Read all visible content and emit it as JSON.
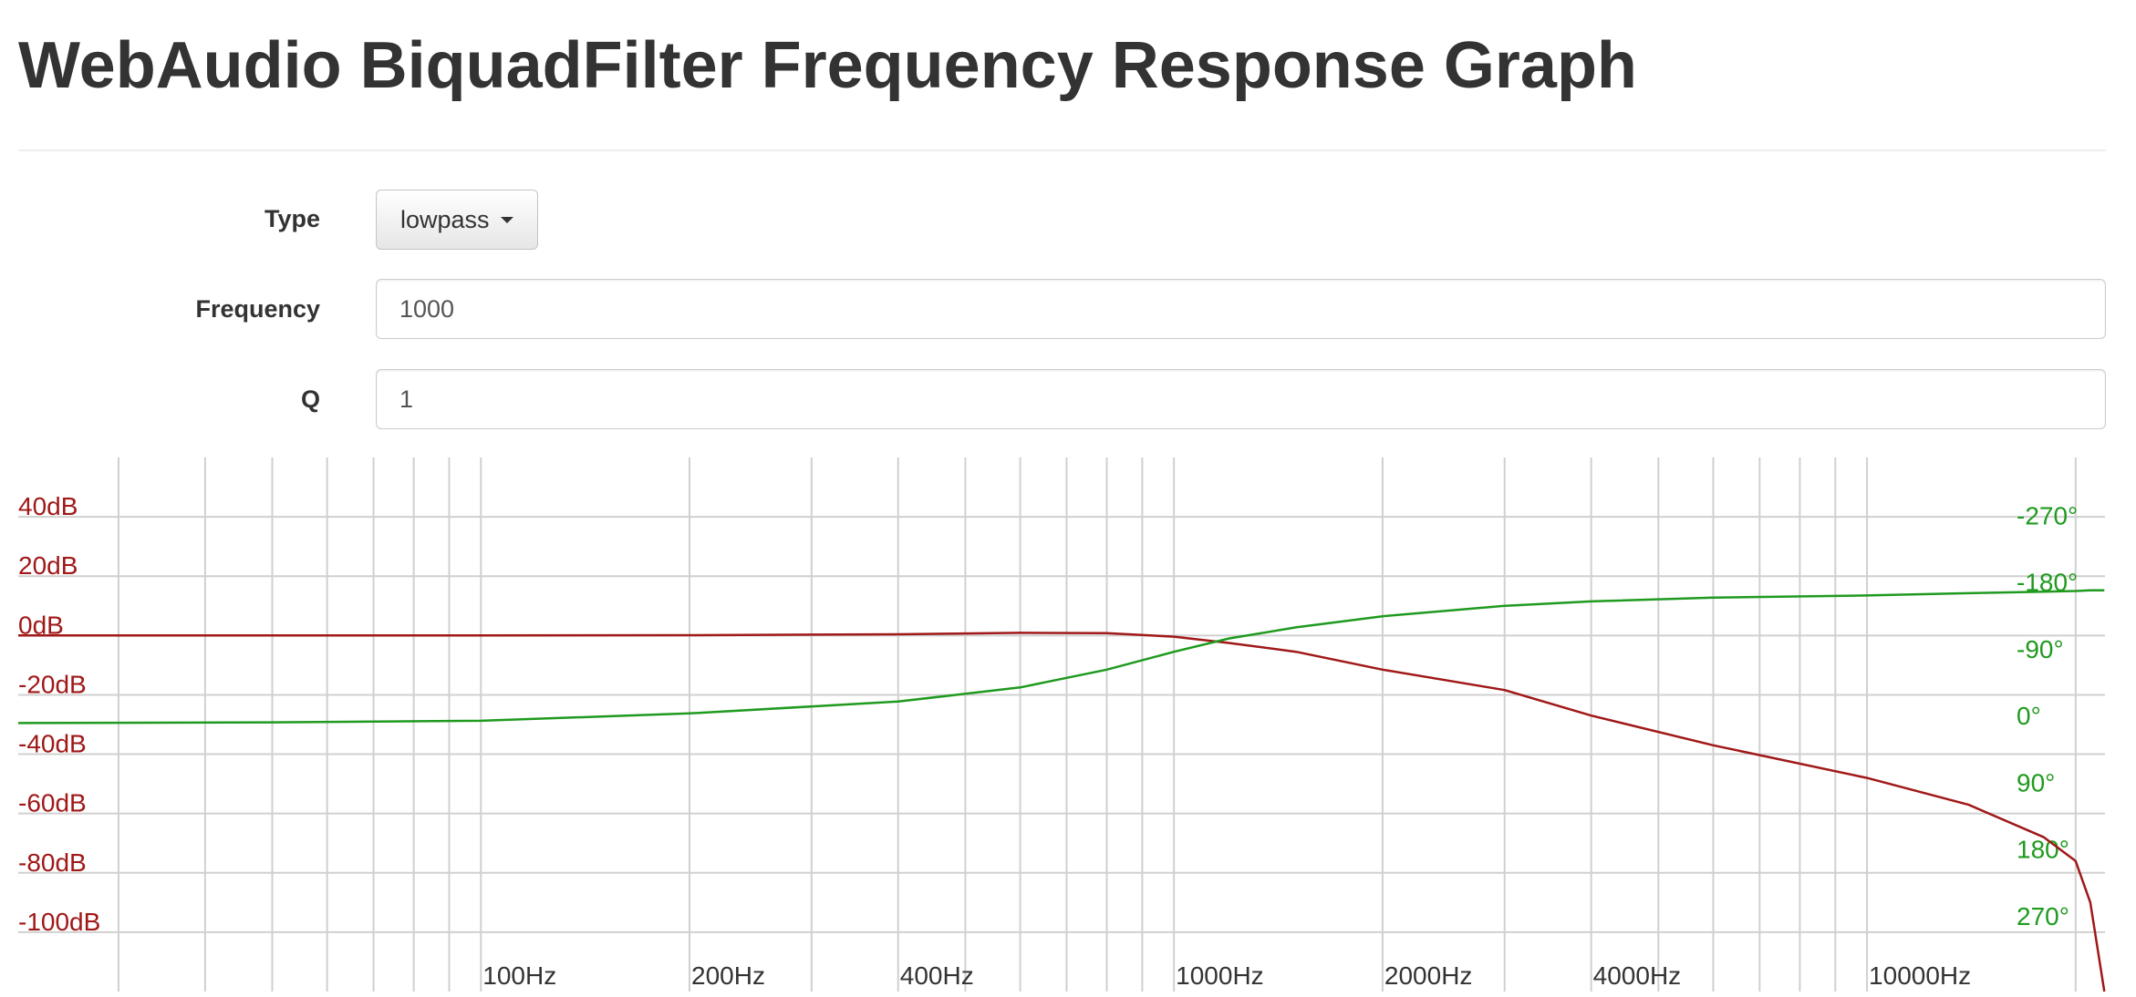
{
  "header": {
    "title": "WebAudio BiquadFilter Frequency Response Graph"
  },
  "form": {
    "fields": [
      {
        "label": "Type",
        "value": "lowpass"
      },
      {
        "label": "Frequency",
        "value": "1000"
      },
      {
        "label": "Q",
        "value": "1"
      }
    ]
  },
  "chart_data": {
    "type": "line",
    "xscale": "log",
    "grid": true,
    "x": [
      21.5,
      50,
      100,
      200,
      400,
      600,
      800,
      1000,
      1200,
      1500,
      2000,
      3000,
      4000,
      6000,
      10000,
      14000,
      18000,
      20000,
      21000,
      22000
    ],
    "xlim": [
      21.5,
      22050
    ],
    "xticks": [
      {
        "value": 100,
        "label": "100Hz"
      },
      {
        "value": 200,
        "label": "200Hz"
      },
      {
        "value": 400,
        "label": "400Hz"
      },
      {
        "value": 1000,
        "label": "1000Hz"
      },
      {
        "value": 2000,
        "label": "2000Hz"
      },
      {
        "value": 4000,
        "label": "4000Hz"
      },
      {
        "value": 10000,
        "label": "10000Hz"
      }
    ],
    "xticks_minor": [
      30,
      40,
      50,
      60,
      70,
      80,
      90,
      300,
      500,
      600,
      700,
      800,
      900,
      3000,
      5000,
      6000,
      7000,
      8000,
      9000,
      20000
    ],
    "ylim": [
      -120,
      60
    ],
    "yticks": [
      {
        "value": 40,
        "label": "40dB"
      },
      {
        "value": 20,
        "label": "20dB"
      },
      {
        "value": 0,
        "label": "0dB"
      },
      {
        "value": -20,
        "label": "-20dB"
      },
      {
        "value": -40,
        "label": "-40dB"
      },
      {
        "value": -60,
        "label": "-60dB"
      },
      {
        "value": -80,
        "label": "-80dB"
      },
      {
        "value": -100,
        "label": "-100dB"
      }
    ],
    "y2lim": [
      360,
      -360
    ],
    "y2ticks": [
      {
        "value": -270,
        "label": "-270°"
      },
      {
        "value": -180,
        "label": "-180°"
      },
      {
        "value": -90,
        "label": "-90°"
      },
      {
        "value": 0,
        "label": "0°"
      },
      {
        "value": 90,
        "label": "90°"
      },
      {
        "value": 180,
        "label": "180°"
      },
      {
        "value": 270,
        "label": "270°"
      }
    ],
    "series": [
      {
        "color": "#a01818",
        "values": [
          0,
          0,
          0,
          0.1,
          0.4,
          0.9,
          0.8,
          -0.4,
          -2.5,
          -5.5,
          -11.5,
          -18.4,
          -27,
          -37,
          -48,
          -57,
          -68,
          -76,
          -90,
          -120
        ]
      },
      {
        "color": "#1f9a1f",
        "axis": "y2",
        "values": [
          -2,
          -3,
          -5,
          -15,
          -31,
          -50,
          -74,
          -98,
          -116,
          -131,
          -146,
          -160,
          -166,
          -171,
          -174,
          -177,
          -179,
          -180,
          -181,
          -181
        ]
      }
    ]
  }
}
